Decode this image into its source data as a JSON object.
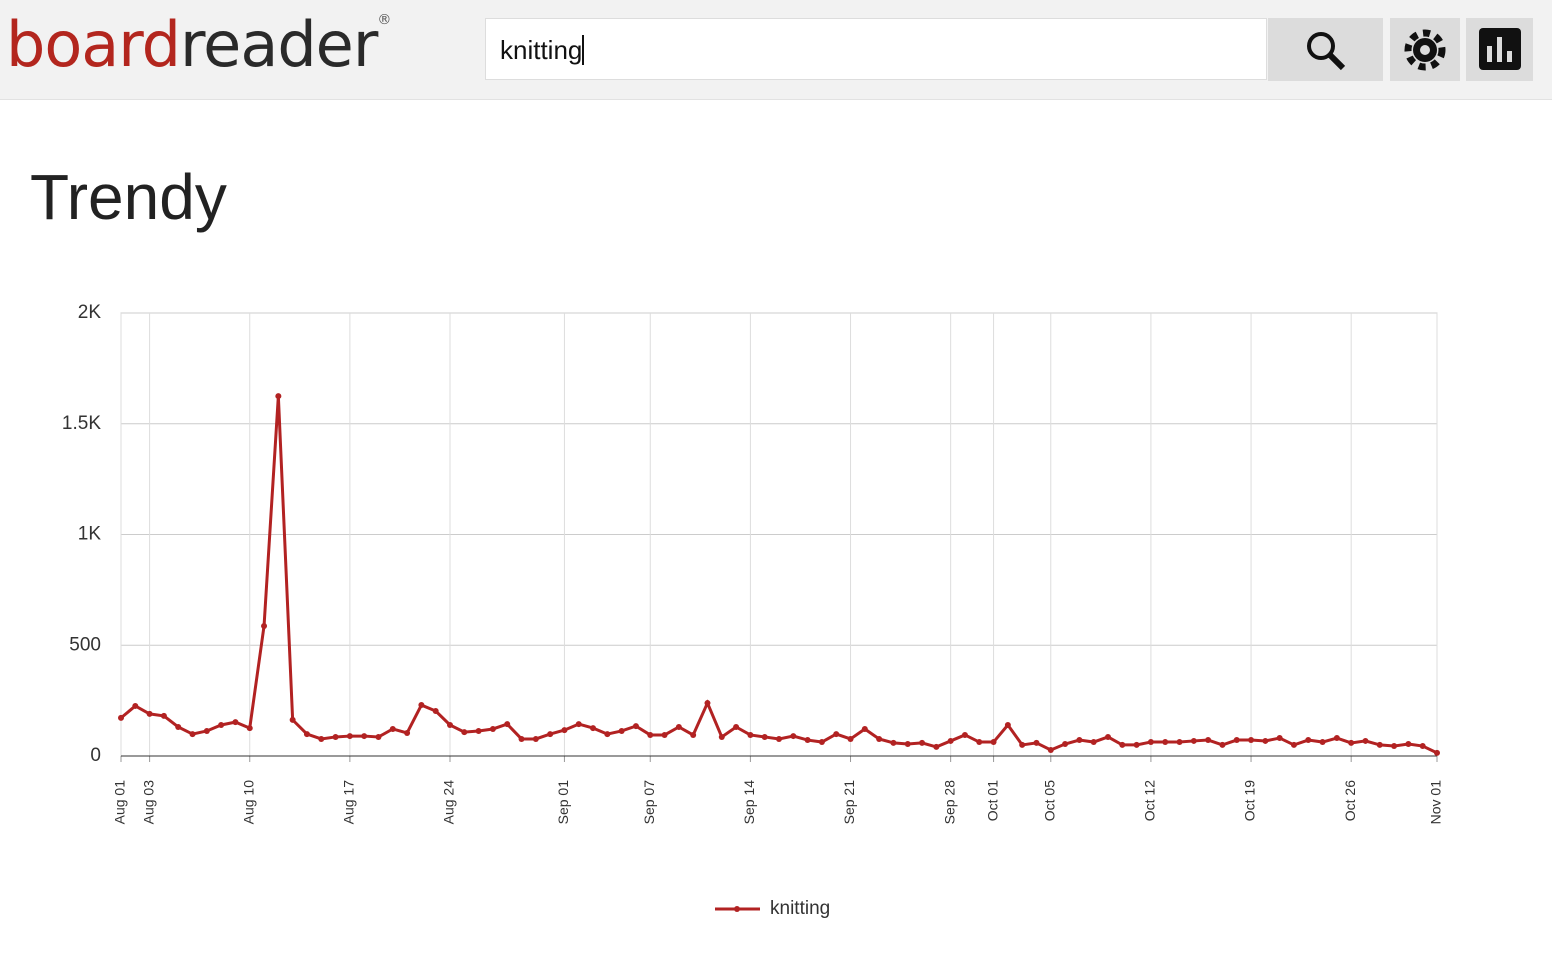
{
  "header": {
    "logo_part1": "board",
    "logo_part2": "reader",
    "logo_mark": "®",
    "search_text": "knitting"
  },
  "heading": "Trendy",
  "chart_data": {
    "type": "line",
    "categories": [
      "Aug 01",
      null,
      "Aug 03",
      null,
      null,
      null,
      null,
      null,
      null,
      "Aug 10",
      null,
      null,
      null,
      null,
      null,
      null,
      "Aug 17",
      null,
      null,
      null,
      null,
      null,
      null,
      "Aug 24",
      null,
      null,
      null,
      null,
      null,
      null,
      null,
      "Sep 01",
      null,
      null,
      null,
      null,
      null,
      "Sep 07",
      null,
      null,
      null,
      null,
      null,
      null,
      "Sep 14",
      null,
      null,
      null,
      null,
      null,
      null,
      "Sep 21",
      null,
      null,
      null,
      null,
      null,
      null,
      "Sep 28",
      null,
      null,
      "Oct 01",
      null,
      null,
      null,
      "Oct 05",
      null,
      null,
      null,
      null,
      null,
      null,
      "Oct 12",
      null,
      null,
      null,
      null,
      null,
      null,
      "Oct 19",
      null,
      null,
      null,
      null,
      null,
      null,
      "Oct 26",
      null,
      null,
      null,
      null,
      null,
      "Nov 01"
    ],
    "series": [
      {
        "name": "knitting",
        "color": "#b22222",
        "values": [
          172,
          226,
          190,
          181,
          131,
          99,
          113,
          140,
          153,
          126,
          587,
          1625,
          163,
          99,
          77,
          86,
          90,
          90,
          86,
          122,
          104,
          230,
          203,
          140,
          108,
          113,
          122,
          144,
          77,
          77,
          99,
          117,
          144,
          126,
          99,
          113,
          135,
          95,
          95,
          131,
          95,
          239,
          86,
          131,
          95,
          86,
          77,
          90,
          72,
          63,
          99,
          77,
          122,
          77,
          59,
          54,
          59,
          41,
          68,
          95,
          63,
          63,
          140,
          50,
          59,
          27,
          54,
          72,
          63,
          86,
          50,
          50,
          63,
          63,
          63,
          68,
          72,
          50,
          72,
          72,
          68,
          81,
          50,
          72,
          63,
          81,
          59,
          68,
          50,
          45,
          54,
          45,
          14
        ]
      }
    ],
    "ylim": [
      0,
      2000
    ],
    "yticks": [
      0,
      500,
      {
        "value": 1000,
        "label": "1K"
      },
      {
        "value": 1500,
        "label": "1.5K"
      },
      {
        "value": 2000,
        "label": "2K"
      }
    ],
    "grid": true,
    "legend": "bottom"
  }
}
